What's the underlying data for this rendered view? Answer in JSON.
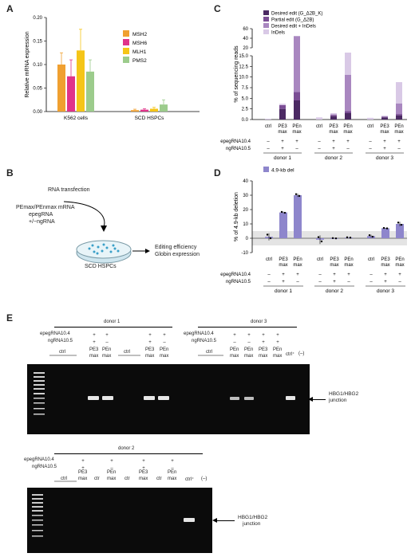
{
  "panels": {
    "A": {
      "label": "A"
    },
    "B": {
      "label": "B"
    },
    "C": {
      "label": "C"
    },
    "D": {
      "label": "D"
    },
    "E": {
      "label": "E"
    }
  },
  "chart_data": [
    {
      "id": "A",
      "type": "bar",
      "ylabel": "Relative mRNA expression",
      "xlabel": "",
      "ylim": [
        0,
        0.2
      ],
      "yticks": [
        "0.00",
        "0.05",
        "0.10",
        "0.15",
        "0.20"
      ],
      "categories": [
        "K562 cells",
        "SCD HSPCs"
      ],
      "series": [
        {
          "name": "MSH2",
          "color": "#f0a030",
          "values": [
            0.1,
            0.003
          ],
          "err": [
            0.025,
            0.002
          ]
        },
        {
          "name": "MSH6",
          "color": "#e0338a",
          "values": [
            0.075,
            0.004
          ],
          "err": [
            0.035,
            0.002
          ]
        },
        {
          "name": "MLH1",
          "color": "#f5c518",
          "values": [
            0.13,
            0.006
          ],
          "err": [
            0.045,
            0.003
          ]
        },
        {
          "name": "PMS2",
          "color": "#9ccc8c",
          "values": [
            0.085,
            0.015
          ],
          "err": [
            0.025,
            0.01
          ]
        }
      ]
    },
    {
      "id": "C",
      "type": "bar",
      "ylabel": "% of sequencing reads",
      "legend": [
        {
          "name": "Desired edit (G_Δ2B_K)",
          "color": "#4b2a63"
        },
        {
          "name": "Partial edit (G_Δ2B)",
          "color": "#7b4e95"
        },
        {
          "name": "Desired edit + InDels",
          "color": "#a987c0"
        },
        {
          "name": "InDels",
          "color": "#d9c9e6"
        }
      ],
      "yticks_low": [
        "0.0",
        "2.5",
        "5.0",
        "7.5",
        "10.0",
        "12.5",
        "15.0"
      ],
      "yticks_high": [
        "20",
        "40",
        "60"
      ],
      "categories": [
        "ctrl",
        "PE3 max",
        "PEn max",
        "ctrl",
        "PE3 max",
        "PEn max",
        "ctrl",
        "PE3 max",
        "PEn max"
      ],
      "stacks": [
        [
          0.0,
          0.0,
          0.0,
          0.2
        ],
        [
          2.5,
          0.9,
          0.0,
          0.3
        ],
        [
          4.5,
          2.0,
          38.0,
          0.0
        ],
        [
          0.0,
          0.0,
          0.0,
          0.5
        ],
        [
          0.8,
          0.3,
          0.1,
          0.3
        ],
        [
          1.5,
          0.5,
          8.5,
          7.0
        ],
        [
          0.0,
          0.0,
          0.0,
          0.4
        ],
        [
          0.5,
          0.2,
          0.0,
          0.2
        ],
        [
          1.0,
          0.3,
          2.5,
          5.0
        ]
      ],
      "row1_label": "epegRNA10.4",
      "row2_label": "ngRNA10.5",
      "row1": [
        "–",
        "+",
        "+",
        "–",
        "+",
        "+",
        "–",
        "+",
        "+"
      ],
      "row2": [
        "–",
        "+",
        "–",
        "–",
        "+",
        "–",
        "–",
        "+",
        "–"
      ],
      "groups": [
        "donor 1",
        "donor 2",
        "donor 3"
      ]
    },
    {
      "id": "D",
      "type": "bar",
      "ylabel": "% of 4.9-kb deletion",
      "legend": [
        {
          "name": "4.9-kb del",
          "color": "#8e86cc"
        }
      ],
      "ylim": [
        -10,
        40
      ],
      "yticks": [
        "-10",
        "0",
        "10",
        "20",
        "30",
        "40"
      ],
      "categories": [
        "ctrl",
        "PE3 max",
        "PEn max",
        "ctrl",
        "PE3 max",
        "PEn max",
        "ctrl",
        "PE3 max",
        "PEn max"
      ],
      "values": [
        1.0,
        18.0,
        30.0,
        -1.0,
        0.0,
        0.5,
        1.5,
        7.0,
        10.0
      ],
      "err": [
        2.5,
        0.6,
        1.2,
        3.0,
        0.2,
        0.2,
        1.0,
        0.3,
        1.5
      ],
      "row1_label": "epegRNA10.4",
      "row2_label": "ngRNA10.5",
      "row1": [
        "–",
        "+",
        "+",
        "–",
        "+",
        "+",
        "–",
        "+",
        "+"
      ],
      "row2": [
        "–",
        "+",
        "–",
        "–",
        "+",
        "–",
        "–",
        "+",
        "–"
      ],
      "groups": [
        "donor 1",
        "donor 2",
        "donor 3"
      ]
    }
  ],
  "B": {
    "rna": "RNA transfection",
    "mix1": "PEmax/PEnmax mRNA",
    "mix2": "epegRNA",
    "mix3": "+/−ngRNA",
    "dish": "SCD HSPCs",
    "out1": "Editing efficiency",
    "out2": "Globin expression"
  },
  "E": {
    "gel1": {
      "donor1": "donor 1",
      "donor3": "donor 3",
      "epeg": "epegRNA10.4",
      "ng": "ngRNA10.5",
      "ctrl": "ctrl",
      "pe3": "PE3",
      "pen": "PEn",
      "max": "max",
      "ctrlplus": "ctrl⁺",
      "neg": "(–)",
      "band_label1": "HBG1/HBG2",
      "band_label2": "junction"
    },
    "gel2": {
      "donor2": "donor 2",
      "epeg": "epegRNA10.4",
      "ng": "ngRNA10.5",
      "ctrl": "ctrl",
      "ctr": "ctr",
      "pe3": "PE3",
      "pen": "PEn",
      "max": "max",
      "ctrlplus": "ctrl⁺",
      "neg": "(–)",
      "band_label1": "HBG1/HBG2",
      "band_label2": "junction"
    }
  }
}
